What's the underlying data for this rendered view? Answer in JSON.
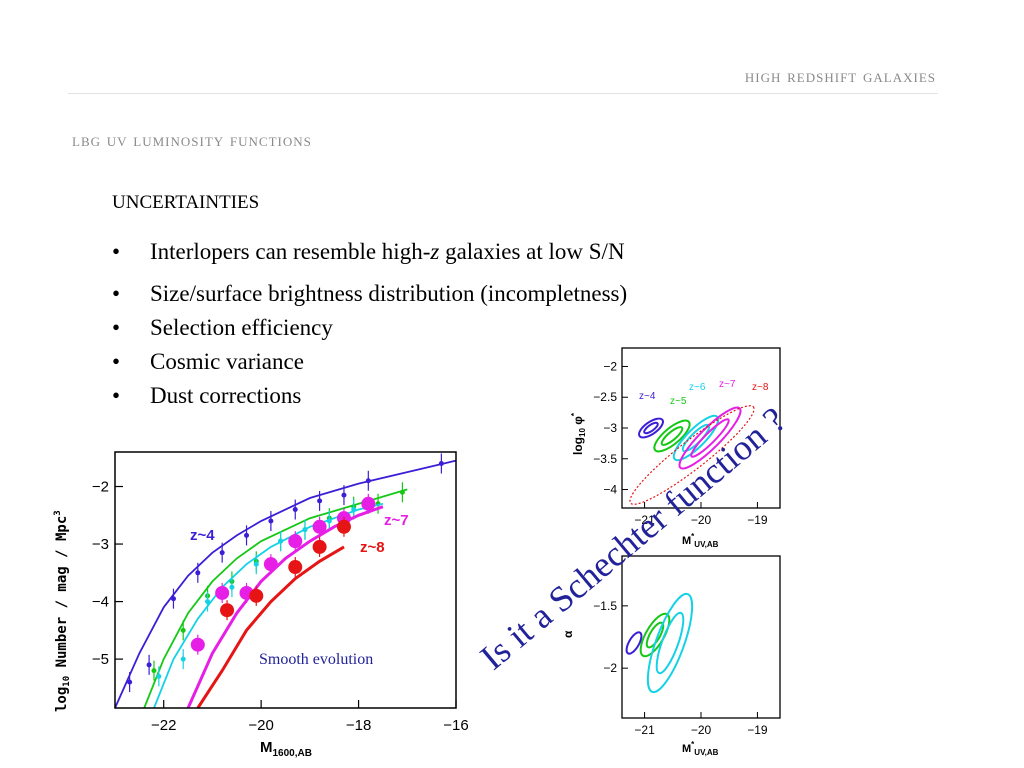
{
  "header": {
    "title": "High Redshift Galaxies",
    "subtitle": "LBG UV Luminosity Functions"
  },
  "content": {
    "heading": "UNCERTAINTIES",
    "bullets": [
      {
        "pre": "Interlopers can resemble high-",
        "em": "z",
        "post": " galaxies at low S/N"
      },
      {
        "pre": "Size/surface brightness distribution (incompletness)",
        "em": "",
        "post": ""
      },
      {
        "pre": "Selection efficiency",
        "em": "",
        "post": ""
      },
      {
        "pre": "Cosmic variance",
        "em": "",
        "post": ""
      },
      {
        "pre": "Dust corrections",
        "em": "",
        "post": ""
      }
    ],
    "bullet_glyph": "•",
    "rotated_question": "Is it a Schechter function ?"
  },
  "colors": {
    "z4": "#3b1fd6",
    "z5": "#14c814",
    "z6": "#14d2e6",
    "z7": "#e61ee6",
    "z8": "#e61414"
  },
  "chart_data": [
    {
      "type": "scatter",
      "xlabel": "M1600,AB",
      "ylabel": "log10 Number / mag / Mpc3",
      "xlim": [
        -23,
        -16
      ],
      "ylim": [
        -5.85,
        -1.4
      ],
      "xticks": [
        -22,
        -20,
        -18,
        -16
      ],
      "yticks": [
        -2,
        -3,
        -4,
        -5
      ],
      "annotation": "Smooth evolution",
      "series": [
        {
          "name": "z~4",
          "color": "#3b1fd6",
          "size": 2.5,
          "x": [
            -22.7,
            -22.3,
            -21.8,
            -21.3,
            -20.8,
            -20.3,
            -19.8,
            -19.3,
            -18.8,
            -18.3,
            -17.8,
            -16.3
          ],
          "y": [
            -5.4,
            -5.1,
            -3.95,
            -3.5,
            -3.15,
            -2.85,
            -2.6,
            -2.4,
            -2.25,
            -2.15,
            -1.9,
            -1.6
          ],
          "curve": [
            [
              -23,
              -5.9
            ],
            [
              -22.5,
              -4.9
            ],
            [
              -22,
              -4.1
            ],
            [
              -21.5,
              -3.55
            ],
            [
              -21,
              -3.15
            ],
            [
              -20.5,
              -2.85
            ],
            [
              -20,
              -2.6
            ],
            [
              -19,
              -2.2
            ],
            [
              -18,
              -1.95
            ],
            [
              -17,
              -1.75
            ],
            [
              -16,
              -1.55
            ]
          ]
        },
        {
          "name": "",
          "color": "#14c814",
          "size": 2.5,
          "x": [
            -22.2,
            -21.6,
            -21.1,
            -20.6,
            -20.1,
            -19.6,
            -19.1,
            -18.6,
            -18.1,
            -17.6,
            -17.1
          ],
          "y": [
            -5.2,
            -4.5,
            -3.9,
            -3.65,
            -3.3,
            -2.95,
            -2.75,
            -2.55,
            -2.35,
            -2.3,
            -2.1
          ],
          "curve": [
            [
              -22.4,
              -5.9
            ],
            [
              -22,
              -5.0
            ],
            [
              -21.5,
              -4.2
            ],
            [
              -21,
              -3.65
            ],
            [
              -20.5,
              -3.25
            ],
            [
              -20,
              -2.95
            ],
            [
              -19,
              -2.55
            ],
            [
              -18,
              -2.3
            ],
            [
              -17,
              -2.05
            ]
          ]
        },
        {
          "name": "",
          "color": "#14d2e6",
          "size": 2.5,
          "x": [
            -22.1,
            -21.6,
            -21.1,
            -20.6,
            -20.1,
            -19.6,
            -19.1,
            -18.6,
            -18.1
          ],
          "y": [
            -5.3,
            -5.0,
            -4.0,
            -3.75,
            -3.35,
            -2.95,
            -2.75,
            -2.6,
            -2.4
          ],
          "curve": [
            [
              -22.2,
              -5.9
            ],
            [
              -21.8,
              -5.0
            ],
            [
              -21.3,
              -4.3
            ],
            [
              -20.8,
              -3.75
            ],
            [
              -20.3,
              -3.35
            ],
            [
              -19.8,
              -3.05
            ],
            [
              -19,
              -2.7
            ],
            [
              -18,
              -2.4
            ],
            [
              -17.5,
              -2.3
            ]
          ]
        },
        {
          "name": "z~7",
          "color": "#e61ee6",
          "size": 7,
          "x": [
            -21.3,
            -20.8,
            -20.3,
            -19.8,
            -19.3,
            -18.8,
            -18.3,
            -17.8
          ],
          "y": [
            -4.75,
            -3.85,
            -3.85,
            -3.35,
            -2.95,
            -2.7,
            -2.55,
            -2.3
          ],
          "curve": [
            [
              -21.5,
              -5.9
            ],
            [
              -21,
              -4.9
            ],
            [
              -20.5,
              -4.2
            ],
            [
              -20,
              -3.65
            ],
            [
              -19.5,
              -3.25
            ],
            [
              -19,
              -2.95
            ],
            [
              -18.5,
              -2.7
            ],
            [
              -18,
              -2.5
            ],
            [
              -17.5,
              -2.35
            ]
          ]
        },
        {
          "name": "z~8",
          "color": "#e61414",
          "size": 7,
          "x": [
            -20.7,
            -20.1,
            -19.3,
            -18.8,
            -18.3
          ],
          "y": [
            -4.15,
            -3.9,
            -3.4,
            -3.05,
            -2.7
          ],
          "curve": [
            [
              -21.3,
              -5.9
            ],
            [
              -20.8,
              -5.2
            ],
            [
              -20.3,
              -4.5
            ],
            [
              -19.8,
              -4.0
            ],
            [
              -19.3,
              -3.6
            ],
            [
              -18.8,
              -3.3
            ],
            [
              -18.3,
              -3.05
            ]
          ]
        }
      ]
    },
    {
      "type": "scatter",
      "xlabel": "M*UV,AB",
      "ylabel": "log10 φ*",
      "xlim": [
        -21.4,
        -18.6
      ],
      "ylim": [
        -4.3,
        -1.7
      ],
      "xticks": [
        -21,
        -20,
        -19
      ],
      "yticks": [
        -2,
        -2.5,
        -3,
        -3.5,
        -4
      ],
      "series": [
        {
          "name": "z~4",
          "color": "#3b1fd6"
        },
        {
          "name": "z~5",
          "color": "#14c814"
        },
        {
          "name": "z~6",
          "color": "#14d2e6"
        },
        {
          "name": "z~7",
          "color": "#e61ee6"
        },
        {
          "name": "z~8",
          "color": "#e61414"
        }
      ]
    },
    {
      "type": "scatter",
      "xlabel": "M*UV,AB",
      "ylabel": "α",
      "xlim": [
        -21.4,
        -18.6
      ],
      "ylim": [
        -2.4,
        -1.1
      ],
      "xticks": [
        -21,
        -20,
        -19
      ],
      "yticks": [
        -1.5,
        -2
      ]
    }
  ]
}
